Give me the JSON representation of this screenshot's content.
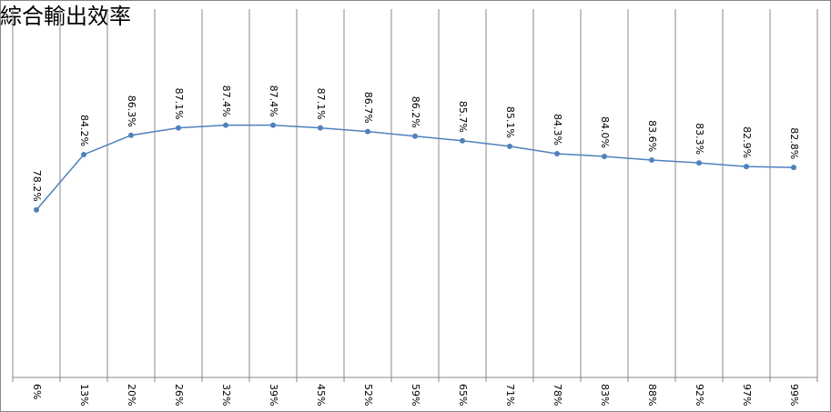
{
  "chart_data": {
    "type": "line",
    "title": "綜合輸出效率",
    "categories": [
      "6%",
      "13%",
      "20%",
      "26%",
      "32%",
      "39%",
      "45%",
      "52%",
      "59%",
      "65%",
      "71%",
      "78%",
      "83%",
      "88%",
      "92%",
      "97%",
      "99%"
    ],
    "series": [
      {
        "color": "#4f81bd",
        "values": [
          78.2,
          84.2,
          86.3,
          87.1,
          87.4,
          87.4,
          87.1,
          86.7,
          86.2,
          85.7,
          85.1,
          84.3,
          84.0,
          83.6,
          83.3,
          82.9,
          82.8
        ],
        "value_labels": [
          "78.2%",
          "84.2%",
          "86.3%",
          "87.1%",
          "87.4%",
          "87.4%",
          "87.1%",
          "86.7%",
          "86.2%",
          "85.7%",
          "85.1%",
          "84.3%",
          "84.0%",
          "83.6%",
          "83.3%",
          "82.9%",
          "82.8%"
        ]
      }
    ],
    "ylim": [
      60,
      100
    ],
    "title_color": "#e00000"
  }
}
